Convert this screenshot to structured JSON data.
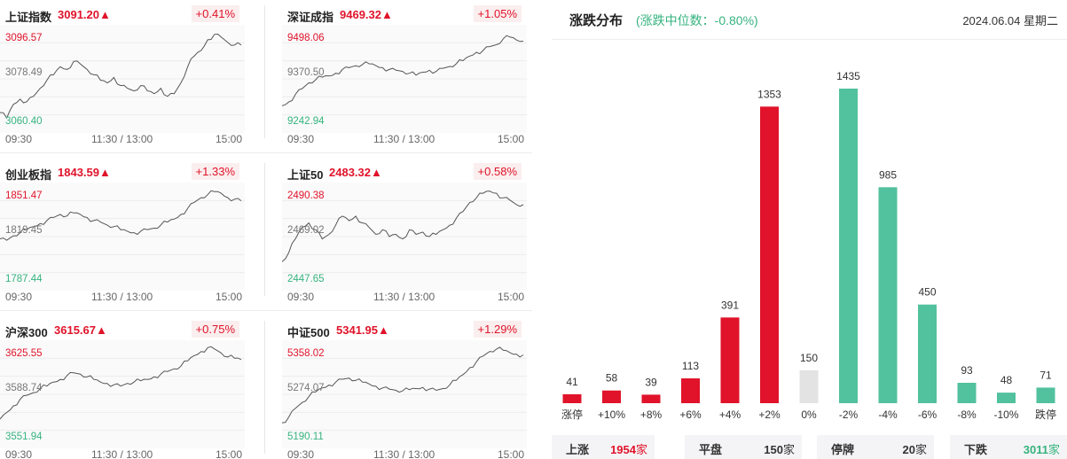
{
  "panels": [
    {
      "name": "上证指数",
      "price": "3091.20▲",
      "pct": "+0.41%",
      "max": "3096.57",
      "mid": "3078.49",
      "min": "3060.40",
      "ax_start": "09:30",
      "ax_mid": "11:30 / 13:00",
      "ax_end": "15:00",
      "series": [
        3066,
        3064,
        3069,
        3071,
        3070,
        3072,
        3075,
        3078,
        3080,
        3083,
        3082,
        3085,
        3084,
        3082,
        3080,
        3078,
        3077,
        3079,
        3076,
        3075,
        3074,
        3076,
        3074,
        3073,
        3075,
        3072,
        3073,
        3077,
        3083,
        3087,
        3089,
        3093,
        3095,
        3094,
        3092,
        3091,
        3091
      ]
    },
    {
      "name": "深证成指",
      "price": "9469.32▲",
      "pct": "+1.05%",
      "max": "9498.06",
      "mid": "9370.50",
      "min": "9242.94",
      "ax_start": "09:30",
      "ax_mid": "11:30 / 13:00",
      "ax_end": "15:00",
      "series": [
        9300,
        9310,
        9330,
        9345,
        9360,
        9368,
        9375,
        9378,
        9385,
        9395,
        9400,
        9405,
        9408,
        9410,
        9405,
        9400,
        9395,
        9393,
        9390,
        9385,
        9380,
        9388,
        9393,
        9390,
        9398,
        9403,
        9410,
        9418,
        9430,
        9440,
        9445,
        9455,
        9460,
        9475,
        9480,
        9472,
        9469
      ]
    },
    {
      "name": "创业板指",
      "price": "1843.59▲",
      "pct": "+1.33%",
      "max": "1851.47",
      "mid": "1819.45",
      "min": "1787.44",
      "ax_start": "09:30",
      "ax_mid": "11:30 / 13:00",
      "ax_end": "15:00",
      "series": [
        1818,
        1817,
        1820,
        1822,
        1824,
        1826,
        1828,
        1830,
        1832,
        1834,
        1833,
        1835,
        1834,
        1832,
        1830,
        1829,
        1827,
        1826,
        1824,
        1823,
        1822,
        1823,
        1824,
        1825,
        1827,
        1829,
        1831,
        1834,
        1838,
        1842,
        1845,
        1847,
        1849,
        1848,
        1845,
        1844,
        1843
      ]
    },
    {
      "name": "上证50",
      "price": "2483.32▲",
      "pct": "+0.58%",
      "max": "2490.38",
      "mid": "2469.02",
      "min": "2447.65",
      "ax_start": "09:30",
      "ax_mid": "11:30 / 13:00",
      "ax_end": "15:00",
      "series": [
        2458,
        2462,
        2468,
        2473,
        2475,
        2472,
        2468,
        2470,
        2474,
        2478,
        2476,
        2478,
        2475,
        2473,
        2470,
        2472,
        2469,
        2470,
        2468,
        2472,
        2470,
        2471,
        2469,
        2470,
        2472,
        2474,
        2477,
        2480,
        2484,
        2486,
        2488,
        2489,
        2488,
        2486,
        2485,
        2483,
        2483
      ]
    },
    {
      "name": "沪深300",
      "price": "3615.67▲",
      "pct": "+0.75%",
      "max": "3625.55",
      "mid": "3588.74",
      "min": "3551.94",
      "ax_start": "09:30",
      "ax_mid": "11:30 / 13:00",
      "ax_end": "15:00",
      "series": [
        3570,
        3575,
        3580,
        3585,
        3588,
        3590,
        3593,
        3595,
        3598,
        3600,
        3603,
        3605,
        3604,
        3602,
        3600,
        3598,
        3597,
        3596,
        3595,
        3597,
        3598,
        3599,
        3600,
        3602,
        3604,
        3606,
        3608,
        3610,
        3614,
        3618,
        3621,
        3624,
        3623,
        3620,
        3617,
        3616,
        3615
      ]
    },
    {
      "name": "中证500",
      "price": "5341.95▲",
      "pct": "+1.29%",
      "max": "5358.02",
      "mid": "5274.07",
      "min": "5190.11",
      "ax_start": "09:30",
      "ax_mid": "11:30 / 13:00",
      "ax_end": "15:00",
      "series": [
        5225,
        5235,
        5250,
        5260,
        5270,
        5278,
        5285,
        5290,
        5295,
        5300,
        5302,
        5298,
        5295,
        5292,
        5288,
        5285,
        5283,
        5281,
        5280,
        5282,
        5284,
        5286,
        5283,
        5281,
        5284,
        5290,
        5298,
        5308,
        5320,
        5330,
        5340,
        5348,
        5352,
        5350,
        5346,
        5343,
        5342
      ]
    }
  ],
  "right": {
    "title": "涨跌分布",
    "subtitle": "(涨跌中位数：-0.80%)",
    "date": "2024.06.04 星期二"
  },
  "colors": {
    "up": "#e0132a",
    "down": "#52c19d",
    "flat": "#e3e3e3"
  },
  "chart_data": {
    "type": "bar",
    "categories": [
      "涨停",
      "+10%",
      "+8%",
      "+6%",
      "+4%",
      "+2%",
      "0%",
      "-2%",
      "-4%",
      "-6%",
      "-8%",
      "-10%",
      "跌停"
    ],
    "values": [
      41,
      58,
      39,
      113,
      391,
      1353,
      150,
      1435,
      985,
      450,
      93,
      48,
      71
    ],
    "groups": [
      "up",
      "up",
      "up",
      "up",
      "up",
      "up",
      "flat",
      "down",
      "down",
      "down",
      "down",
      "down",
      "down"
    ]
  },
  "summary": [
    {
      "label": "上涨",
      "value": "1954",
      "unit": "家",
      "color": "#e0132a"
    },
    {
      "label": "平盘",
      "value": "150",
      "unit": "家",
      "color": "#333333"
    },
    {
      "label": "停牌",
      "value": "20",
      "unit": "家",
      "color": "#333333"
    },
    {
      "label": "下跌",
      "value": "3011",
      "unit": "家",
      "color": "#35b37e"
    }
  ]
}
